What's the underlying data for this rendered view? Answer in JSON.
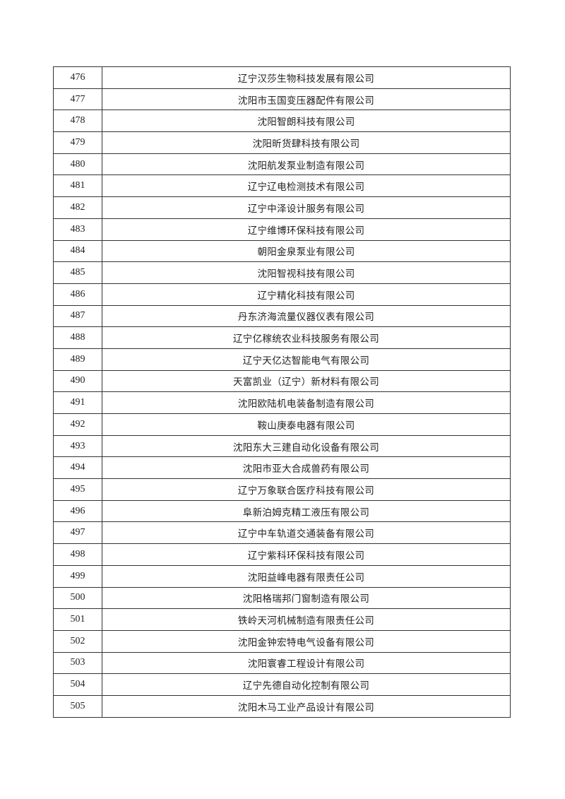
{
  "rows": [
    {
      "no": "476",
      "name": "辽宁汉莎生物科技发展有限公司"
    },
    {
      "no": "477",
      "name": "沈阳市玉国变压器配件有限公司"
    },
    {
      "no": "478",
      "name": "沈阳智朗科技有限公司"
    },
    {
      "no": "479",
      "name": "沈阳昕货肆科技有限公司"
    },
    {
      "no": "480",
      "name": "沈阳航发泵业制造有限公司"
    },
    {
      "no": "481",
      "name": "辽宁辽电检测技术有限公司"
    },
    {
      "no": "482",
      "name": "辽宁中泽设计服务有限公司"
    },
    {
      "no": "483",
      "name": "辽宁维博环保科技有限公司"
    },
    {
      "no": "484",
      "name": "朝阳金泉泵业有限公司"
    },
    {
      "no": "485",
      "name": "沈阳智视科技有限公司"
    },
    {
      "no": "486",
      "name": "辽宁精化科技有限公司"
    },
    {
      "no": "487",
      "name": "丹东济海流量仪器仪表有限公司"
    },
    {
      "no": "488",
      "name": "辽宁亿稼统农业科技服务有限公司"
    },
    {
      "no": "489",
      "name": "辽宁天亿达智能电气有限公司"
    },
    {
      "no": "490",
      "name": "天富凯业（辽宁）新材料有限公司"
    },
    {
      "no": "491",
      "name": "沈阳欧陆机电装备制造有限公司"
    },
    {
      "no": "492",
      "name": "鞍山庚泰电器有限公司"
    },
    {
      "no": "493",
      "name": "沈阳东大三建自动化设备有限公司"
    },
    {
      "no": "494",
      "name": "沈阳市亚大合成兽药有限公司"
    },
    {
      "no": "495",
      "name": "辽宁万象联合医疗科技有限公司"
    },
    {
      "no": "496",
      "name": "阜新泊姆克精工液压有限公司"
    },
    {
      "no": "497",
      "name": "辽宁中车轨道交通装备有限公司"
    },
    {
      "no": "498",
      "name": "辽宁紫科环保科技有限公司"
    },
    {
      "no": "499",
      "name": "沈阳益峰电器有限责任公司"
    },
    {
      "no": "500",
      "name": "沈阳格瑞邦门窗制造有限公司"
    },
    {
      "no": "501",
      "name": "铁岭天河机械制造有限责任公司"
    },
    {
      "no": "502",
      "name": "沈阳金钟宏特电气设备有限公司"
    },
    {
      "no": "503",
      "name": "沈阳寰睿工程设计有限公司"
    },
    {
      "no": "504",
      "name": "辽宁先德自动化控制有限公司"
    },
    {
      "no": "505",
      "name": "沈阳木马工业产品设计有限公司"
    }
  ]
}
